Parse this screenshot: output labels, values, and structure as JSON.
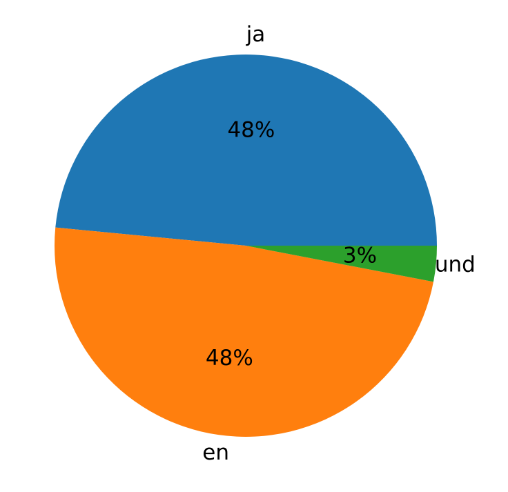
{
  "chart_data": {
    "type": "pie",
    "categories": [
      "ja",
      "en",
      "und"
    ],
    "values": [
      48,
      48,
      3
    ],
    "value_labels": [
      "48%",
      "48%",
      "3%"
    ],
    "colors": [
      "#1f77b4",
      "#ff7f0e",
      "#2ca02c"
    ],
    "start_angle": 0,
    "counterclock": true
  }
}
